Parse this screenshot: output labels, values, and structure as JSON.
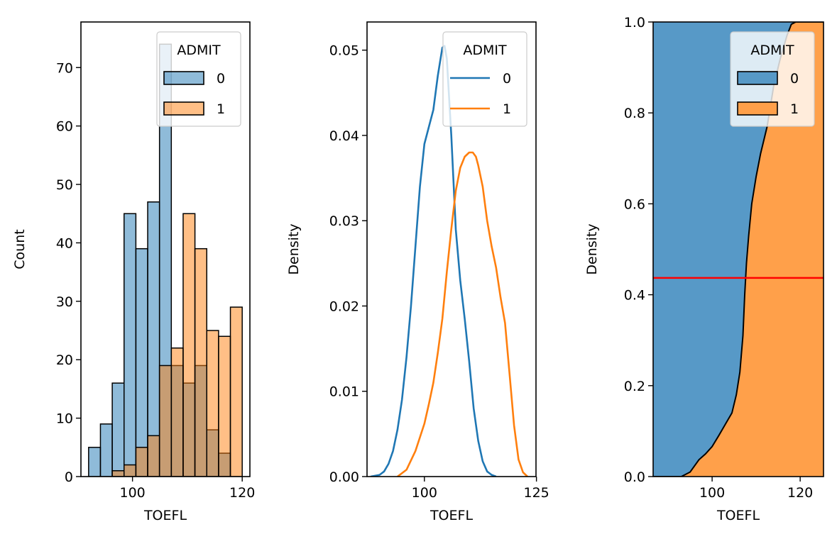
{
  "colors": {
    "admit0": "#1f77b4",
    "admit1": "#ff7f0e",
    "hist0": "#8fb9da",
    "hist1": "#ffbf86",
    "overlap": "#8d9a9e",
    "fill0": "#5799c7",
    "fill1": "#ffa04a",
    "hline": "#ff0000"
  },
  "chart_data": [
    {
      "type": "bar",
      "subtype": "histogram-overlaid",
      "xlabel": "TOEFL",
      "ylabel": "Count",
      "xlim": [
        90.6,
        121.4
      ],
      "ylim": [
        0,
        77.8
      ],
      "xticks": [
        100,
        120
      ],
      "xtick_labels": [
        "100",
        "120"
      ],
      "yticks": [
        0,
        10,
        20,
        30,
        40,
        50,
        60,
        70
      ],
      "ytick_labels": [
        "0",
        "10",
        "20",
        "30",
        "40",
        "50",
        "60",
        "70"
      ],
      "bin_start": 92,
      "bin_width": 2.1538,
      "legend": {
        "title": "ADMIT",
        "entries": [
          "0",
          "1"
        ],
        "placement": "top-right"
      },
      "series": [
        {
          "name": "0",
          "values": [
            5,
            9,
            16,
            45,
            39,
            47,
            74,
            19,
            16,
            19,
            8,
            4,
            0
          ]
        },
        {
          "name": "1",
          "values": [
            0,
            0,
            1,
            2,
            5,
            7,
            19,
            22,
            45,
            39,
            25,
            24,
            29
          ]
        }
      ]
    },
    {
      "type": "line",
      "subtype": "kde",
      "xlabel": "TOEFL",
      "ylabel": "Density",
      "xlim": [
        87.2,
        124.9
      ],
      "ylim": [
        0,
        0.0533
      ],
      "xticks": [
        100,
        125
      ],
      "xtick_labels": [
        "100",
        "125"
      ],
      "yticks": [
        0,
        0.01,
        0.02,
        0.03,
        0.04,
        0.05
      ],
      "ytick_labels": [
        "0.00",
        "0.01",
        "0.02",
        "0.03",
        "0.04",
        "0.05"
      ],
      "legend": {
        "title": "ADMIT",
        "entries": [
          "0",
          "1"
        ],
        "placement": "top-right"
      },
      "series": [
        {
          "name": "0",
          "x": [
            88,
            90,
            91,
            92,
            93,
            94,
            95,
            96,
            97,
            98,
            99,
            100,
            101,
            102,
            103,
            104,
            104.5,
            105,
            106,
            107,
            108,
            109,
            110,
            111,
            112,
            113,
            114,
            115,
            116
          ],
          "y": [
            0,
            0.0002,
            0.0006,
            0.0015,
            0.003,
            0.0055,
            0.009,
            0.014,
            0.02,
            0.027,
            0.034,
            0.039,
            0.041,
            0.043,
            0.047,
            0.0503,
            0.0505,
            0.049,
            0.04,
            0.029,
            0.023,
            0.0185,
            0.0135,
            0.008,
            0.0042,
            0.0018,
            0.0006,
            0.0002,
            0
          ]
        },
        {
          "name": "1",
          "x": [
            94,
            96,
            98,
            100,
            101,
            102,
            103,
            104,
            105,
            106,
            107,
            108,
            109,
            110,
            110.8,
            111.5,
            112,
            113,
            114,
            115,
            116,
            117,
            118,
            119,
            120,
            121,
            122,
            123
          ],
          "y": [
            0,
            0.0008,
            0.003,
            0.0062,
            0.0085,
            0.011,
            0.0145,
            0.0185,
            0.024,
            0.029,
            0.0335,
            0.0362,
            0.0375,
            0.038,
            0.038,
            0.0375,
            0.0365,
            0.034,
            0.03,
            0.027,
            0.0245,
            0.021,
            0.018,
            0.012,
            0.006,
            0.002,
            0.0005,
            0
          ]
        }
      ]
    },
    {
      "type": "area",
      "subtype": "kde-fill-stacked",
      "xlabel": "TOEFL",
      "ylabel": "Density",
      "xlim": [
        86.6,
        125.3
      ],
      "ylim": [
        0,
        1
      ],
      "xticks": [
        100,
        120
      ],
      "xtick_labels": [
        "100",
        "120"
      ],
      "yticks": [
        0,
        0.2,
        0.4,
        0.6,
        0.8,
        1.0
      ],
      "ytick_labels": [
        "0.0",
        "0.2",
        "0.4",
        "0.6",
        "0.8",
        "1.0"
      ],
      "legend": {
        "title": "ADMIT",
        "entries": [
          "0",
          "1"
        ],
        "placement": "top-right"
      },
      "boundary": {
        "x": [
          86.6,
          93,
          95,
          97,
          98.5,
          100,
          101.5,
          103,
          104.5,
          105.5,
          106.3,
          107,
          107.4,
          107.8,
          108.3,
          109,
          110,
          111,
          112.5,
          114,
          115.5,
          117,
          118,
          119,
          125.3
        ],
        "y": [
          0,
          0,
          0.01,
          0.037,
          0.05,
          0.066,
          0.09,
          0.115,
          0.14,
          0.18,
          0.23,
          0.31,
          0.4,
          0.47,
          0.53,
          0.6,
          0.66,
          0.71,
          0.77,
          0.86,
          0.92,
          0.97,
          0.995,
          1.0,
          1.0
        ]
      },
      "hline": 0.437
    }
  ]
}
